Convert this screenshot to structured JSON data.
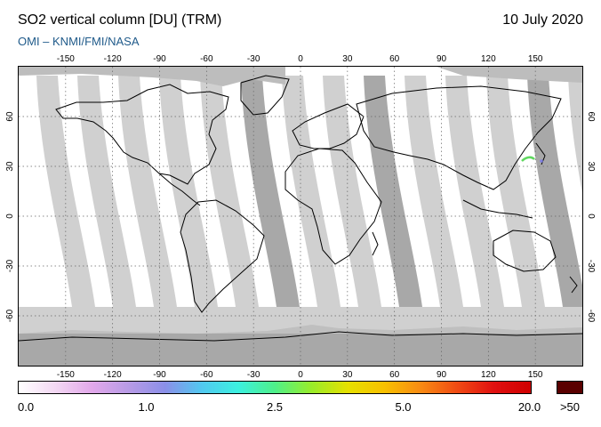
{
  "header": {
    "title": "SO2 vertical column [DU] (TRM)",
    "date": "10 July 2020",
    "credit": "OMI  –  KNMI/FMI/NASA"
  },
  "map": {
    "lon_range": [
      -180,
      180
    ],
    "lat_range": [
      -90,
      90
    ],
    "lon_ticks": [
      "-150",
      "-120",
      "-90",
      "-60",
      "-30",
      "0",
      "30",
      "60",
      "90",
      "120",
      "150"
    ],
    "lat_ticks": [
      "60",
      "30",
      "0",
      "-30",
      "-60"
    ],
    "colors": {
      "swath_light": "#d0d0d0",
      "swath_dark": "#a8a8a8",
      "polar_gray": "#c0c0c0",
      "coast": "#000000",
      "grid": "#666666"
    }
  },
  "colorbar": {
    "labels": [
      "0.0",
      "1.0",
      "2.5",
      "5.0",
      "20.0"
    ],
    "overflow_label": ">50",
    "overflow_color": "#5a0000",
    "stops": [
      "#ffffff",
      "#f3d8f3",
      "#e2a8ea",
      "#b89be6",
      "#8b8fe8",
      "#52c8f0",
      "#3cf0e0",
      "#4ef08a",
      "#98ec2a",
      "#e6e000",
      "#f8c000",
      "#f88a14",
      "#f04a14",
      "#e01010",
      "#d00000"
    ]
  }
}
